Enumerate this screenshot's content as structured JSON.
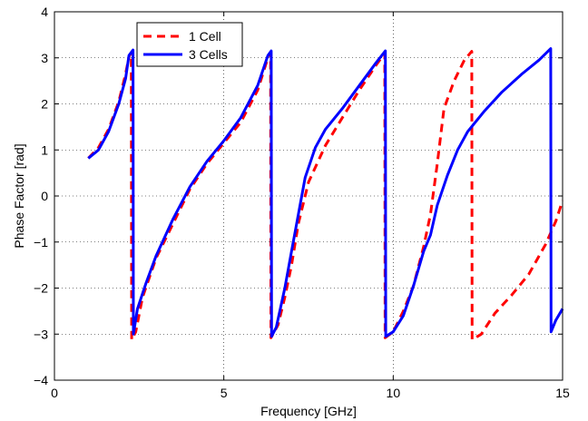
{
  "chart_data": {
    "type": "line",
    "title": "",
    "xlabel": "Frequency [GHz]",
    "ylabel": "Phase  Factor [rad]",
    "xlim": [
      0,
      15
    ],
    "ylim": [
      -4,
      4
    ],
    "xticks": [
      0,
      5,
      10,
      15
    ],
    "yticks": [
      -4,
      -3,
      -2,
      -1,
      0,
      1,
      2,
      3,
      4
    ],
    "xtick_labels": [
      "0",
      "5",
      "10",
      "15"
    ],
    "ytick_labels": [
      "−4",
      "−3",
      "−2",
      "−1",
      "0",
      "1",
      "2",
      "3",
      "4"
    ],
    "grid": true,
    "legend_position": "top-left",
    "series": [
      {
        "name": "1 Cell",
        "color": "#ff0000",
        "style": "dashed",
        "points": [
          [
            1.0,
            0.82
          ],
          [
            1.3,
            1.05
          ],
          [
            1.6,
            1.45
          ],
          [
            1.9,
            2.05
          ],
          [
            2.1,
            2.65
          ],
          [
            2.2,
            3.02
          ],
          [
            2.27,
            3.12
          ],
          [
            2.28,
            -3.12
          ],
          [
            2.4,
            -2.95
          ],
          [
            2.6,
            -2.2
          ],
          [
            3.0,
            -1.35
          ],
          [
            3.5,
            -0.6
          ],
          [
            4.0,
            0.15
          ],
          [
            4.5,
            0.7
          ],
          [
            5.0,
            1.15
          ],
          [
            5.5,
            1.6
          ],
          [
            6.0,
            2.3
          ],
          [
            6.3,
            3.0
          ],
          [
            6.38,
            3.12
          ],
          [
            6.39,
            -3.08
          ],
          [
            6.6,
            -2.8
          ],
          [
            6.8,
            -2.2
          ],
          [
            7.0,
            -1.5
          ],
          [
            7.2,
            -0.6
          ],
          [
            7.5,
            0.3
          ],
          [
            8.0,
            1.1
          ],
          [
            8.5,
            1.7
          ],
          [
            9.0,
            2.3
          ],
          [
            9.5,
            2.85
          ],
          [
            9.75,
            3.1
          ],
          [
            9.76,
            -3.08
          ],
          [
            10.0,
            -2.95
          ],
          [
            10.3,
            -2.5
          ],
          [
            10.6,
            -1.95
          ],
          [
            10.9,
            -1.1
          ],
          [
            11.1,
            -0.4
          ],
          [
            11.3,
            0.7
          ],
          [
            11.5,
            1.9
          ],
          [
            11.8,
            2.5
          ],
          [
            12.1,
            2.95
          ],
          [
            12.32,
            3.14
          ],
          [
            12.33,
            -3.12
          ],
          [
            12.6,
            -3.0
          ],
          [
            13.0,
            -2.55
          ],
          [
            13.5,
            -2.15
          ],
          [
            14.0,
            -1.7
          ],
          [
            14.5,
            -1.05
          ],
          [
            14.8,
            -0.55
          ],
          [
            15.0,
            -0.1
          ]
        ]
      },
      {
        "name": "3 Cells",
        "color": "#0000ff",
        "style": "solid",
        "points": [
          [
            1.0,
            0.82
          ],
          [
            1.3,
            1.0
          ],
          [
            1.6,
            1.4
          ],
          [
            1.9,
            2.0
          ],
          [
            2.1,
            2.55
          ],
          [
            2.2,
            3.05
          ],
          [
            2.32,
            3.17
          ],
          [
            2.33,
            -3.0
          ],
          [
            2.45,
            -2.45
          ],
          [
            2.7,
            -1.9
          ],
          [
            3.0,
            -1.3
          ],
          [
            3.5,
            -0.5
          ],
          [
            4.0,
            0.2
          ],
          [
            4.5,
            0.75
          ],
          [
            5.0,
            1.2
          ],
          [
            5.5,
            1.7
          ],
          [
            6.0,
            2.4
          ],
          [
            6.3,
            3.05
          ],
          [
            6.4,
            3.15
          ],
          [
            6.41,
            -3.05
          ],
          [
            6.55,
            -2.85
          ],
          [
            6.8,
            -2.0
          ],
          [
            7.0,
            -1.2
          ],
          [
            7.2,
            -0.4
          ],
          [
            7.4,
            0.4
          ],
          [
            7.7,
            1.05
          ],
          [
            8.0,
            1.45
          ],
          [
            8.5,
            1.9
          ],
          [
            9.0,
            2.4
          ],
          [
            9.5,
            2.9
          ],
          [
            9.77,
            3.15
          ],
          [
            9.78,
            -3.05
          ],
          [
            10.0,
            -2.95
          ],
          [
            10.3,
            -2.6
          ],
          [
            10.6,
            -1.95
          ],
          [
            10.9,
            -1.2
          ],
          [
            11.1,
            -0.85
          ],
          [
            11.3,
            -0.2
          ],
          [
            11.6,
            0.45
          ],
          [
            11.9,
            1.0
          ],
          [
            12.2,
            1.4
          ],
          [
            12.7,
            1.85
          ],
          [
            13.2,
            2.25
          ],
          [
            13.8,
            2.65
          ],
          [
            14.3,
            2.95
          ],
          [
            14.65,
            3.2
          ],
          [
            14.66,
            -2.95
          ],
          [
            14.8,
            -2.7
          ],
          [
            15.0,
            -2.45
          ]
        ]
      }
    ]
  }
}
